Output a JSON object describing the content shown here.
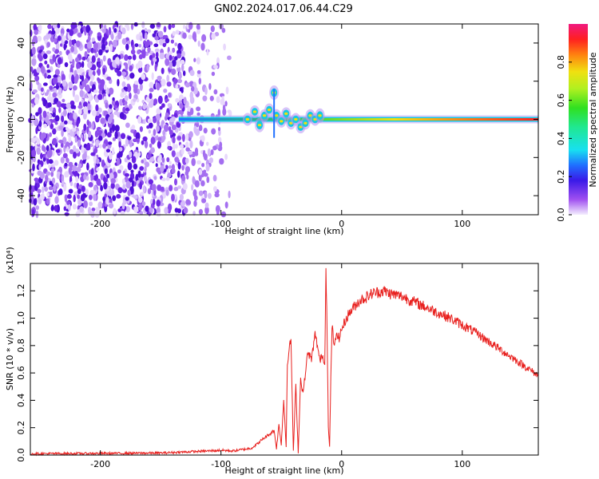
{
  "chart_data": [
    {
      "type": "heatmap",
      "title": "GN02.2024.017.06.44.C29",
      "xlabel": "Height of straight line (km)",
      "ylabel": "Frequency (Hz)",
      "xlim": [
        -258,
        163
      ],
      "ylim": [
        -50,
        50
      ],
      "xticks": [
        -200,
        -100,
        0,
        100
      ],
      "yticks": [
        -40,
        -20,
        0,
        20,
        40
      ],
      "colorbar": {
        "label": "Normalized spectral amplitude",
        "range": [
          0.0,
          1.0
        ],
        "ticks": [
          0.0,
          0.2,
          0.4,
          0.6,
          0.8
        ]
      },
      "regions": [
        {
          "desc": "scattered noise",
          "x_from": -258,
          "x_to": -92,
          "amplitude": 0.2
        },
        {
          "desc": "carrier line",
          "x_from": -135,
          "x_to": 163,
          "freq": 0
        },
        {
          "desc": "disturbed carrier",
          "x_from": -80,
          "x_to": -15,
          "freq_range": [
            -8,
            16
          ]
        }
      ]
    },
    {
      "type": "line",
      "xlabel": "Height of straight line (km)",
      "ylabel": "SNR (10 * v/v)",
      "yscale_note": "(x10⁴)",
      "xlim": [
        -258,
        163
      ],
      "ylim": [
        0.0,
        1.4
      ],
      "xticks": [
        -200,
        -100,
        0,
        100
      ],
      "yticks": [
        0.0,
        0.2,
        0.4,
        0.6,
        0.8,
        1.0,
        1.2
      ],
      "series": [
        {
          "color": "#e8201e",
          "x": [
            -258,
            -200,
            -150,
            -110,
            -100,
            -90,
            -75,
            -70,
            -65,
            -60,
            -56,
            -54,
            -52,
            -50,
            -48,
            -46,
            -45,
            -42,
            -40,
            -38,
            -36,
            -34,
            -32,
            -30,
            -28,
            -25,
            -22,
            -20,
            -18,
            -16,
            -14,
            -13,
            -12,
            -11,
            -10,
            -9,
            -8,
            -6,
            -4,
            -2,
            0,
            5,
            10,
            15,
            20,
            25,
            30,
            35,
            40,
            50,
            60,
            70,
            80,
            90,
            100,
            110,
            120,
            130,
            140,
            150,
            163
          ],
          "y": [
            0.01,
            0.012,
            0.015,
            0.03,
            0.035,
            0.03,
            0.05,
            0.08,
            0.12,
            0.15,
            0.18,
            0.05,
            0.22,
            0.08,
            0.4,
            0.06,
            0.68,
            0.85,
            0.03,
            0.5,
            0.02,
            0.56,
            0.45,
            0.6,
            0.75,
            0.7,
            0.88,
            0.8,
            0.68,
            0.74,
            0.65,
            1.4,
            0.9,
            0.2,
            0.06,
            0.55,
            0.95,
            0.78,
            0.9,
            0.85,
            0.92,
            1.02,
            1.08,
            1.13,
            1.15,
            1.18,
            1.19,
            1.2,
            1.18,
            1.16,
            1.12,
            1.08,
            1.04,
            1.0,
            0.95,
            0.9,
            0.84,
            0.78,
            0.72,
            0.66,
            0.58
          ]
        }
      ]
    }
  ]
}
